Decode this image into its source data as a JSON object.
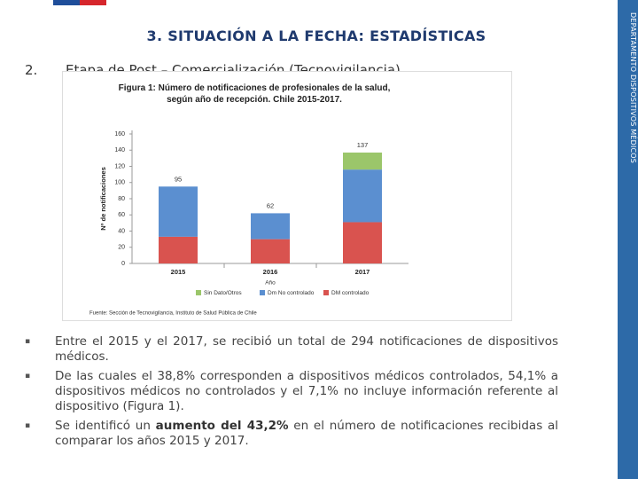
{
  "side_label": "DEPARTAMENTO DISPOSITIVOS MÉDICOS",
  "heading": "3. SITUACIÓN A LA FECHA: ESTADÍSTICAS",
  "subheading": {
    "number": "2.",
    "text": "Etapa de Post – Comercialización (Tecnovigilancia)"
  },
  "chart_data": {
    "type": "stacked_bar",
    "title": "Figura 1: Número de notificaciones de profesionales de la salud, según año de recepción. Chile 2015-2017.",
    "categories": [
      "2015",
      "2016",
      "2017"
    ],
    "series": [
      {
        "name": "DM controlado",
        "color": "#d9534f",
        "values": [
          33,
          30,
          51
        ]
      },
      {
        "name": "Dm No controlado",
        "color": "#5b8fd0",
        "values": [
          62,
          32,
          65
        ]
      },
      {
        "name": "Sin Dato/Otros",
        "color": "#9bc66a",
        "values": [
          0,
          0,
          21
        ]
      }
    ],
    "total_labels": [
      95,
      62,
      137
    ],
    "ylim": [
      0,
      160
    ],
    "yticks": [
      0,
      20,
      40,
      60,
      80,
      100,
      120,
      140,
      160
    ],
    "ylabel": "Nº de notificaciones",
    "xlabel": "Año",
    "source": "Fuente: Sección de Tecnovigilancia, Instituto de Salud Pública de Chile",
    "grid": false
  },
  "bullets": [
    [
      "Entre el 2015 y el 2017, se recibió un total de 294 notificaciones de dispositivos médicos."
    ],
    [
      "De las cuales el 38,8% corresponden a dispositivos médicos controlados, 54,1% a dispositivos médicos no controlados y el 7,1% no incluye información referente al dispositivo (Figura 1)."
    ],
    [
      "Se identificó un ",
      "aumento del 43,2%",
      " en el número de notificaciones recibidas al comparar los años 2015 y 2017."
    ]
  ]
}
